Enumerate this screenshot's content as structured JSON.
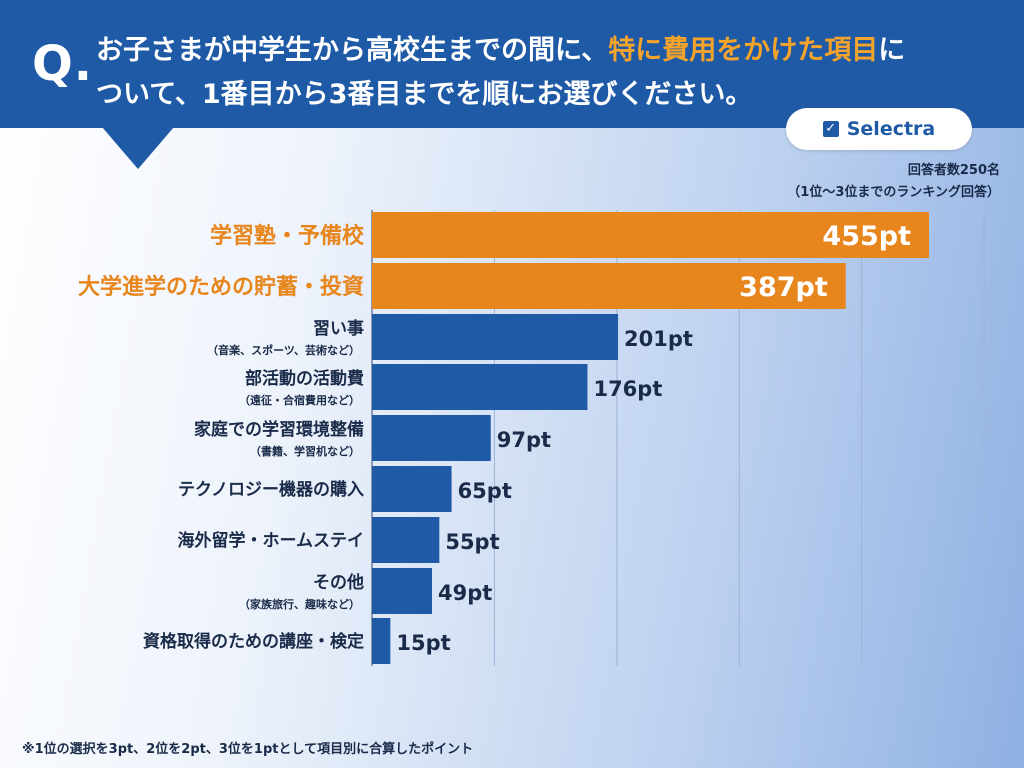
{
  "header": {
    "q_mark": "Q.",
    "line1_pre": "お子さまが中学生から高校生までの間に、",
    "line1_highlight": "特に費用をかけた項目",
    "line1_post": "に",
    "line2": "ついて、1番目から3番目までを順にお選びください。"
  },
  "logo": {
    "text": "Selectra",
    "check_icon": "✓"
  },
  "note": {
    "respondents": "回答者数250名",
    "method": "（1位〜3位までのランキング回答）"
  },
  "footnote": "※1位の選択を3pt、2位を2pt、3位を1ptとして項目別に合算したポイント",
  "colors": {
    "highlight": "#e8861e",
    "normal": "#1f5aa6",
    "header": "#1f5aa6",
    "highlight_text": "#e8861e"
  },
  "chart_data": {
    "type": "bar",
    "orientation": "horizontal",
    "categories": [
      "学習塾・予備校",
      "大学進学のための貯蓄・投資",
      "習い事",
      "部活動の活動費",
      "家庭での学習環境整備",
      "テクノロジー機器の購入",
      "海外留学・ホームステイ",
      "その他",
      "資格取得のための講座・検定"
    ],
    "sublabels": [
      "",
      "",
      "（音楽、スポーツ、芸術など）",
      "（遠征・合宿費用など）",
      "（書籍、学習机など）",
      "",
      "",
      "（家族旅行、趣味など）",
      ""
    ],
    "values": [
      455,
      387,
      201,
      176,
      97,
      65,
      55,
      49,
      15
    ],
    "value_labels": [
      "455pt",
      "387pt",
      "201pt",
      "176pt",
      "97pt",
      "65pt",
      "55pt",
      "49pt",
      "15pt"
    ],
    "highlighted": [
      true,
      true,
      false,
      false,
      false,
      false,
      false,
      false,
      false
    ],
    "xlim": [
      0,
      500
    ],
    "grid": true
  }
}
